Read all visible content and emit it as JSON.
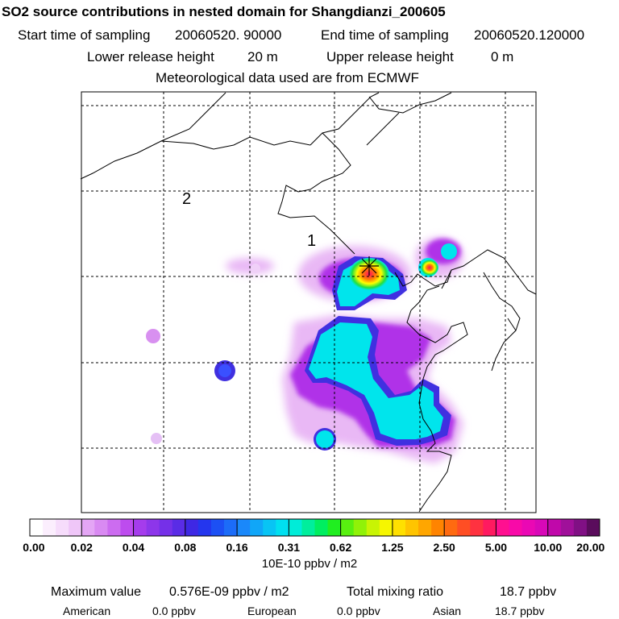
{
  "title": "SO2 source contributions in nested domain for Shangdianzi_200605",
  "sampling": {
    "start_label": "Start time of sampling",
    "start_value": "20060520. 90000",
    "end_label": "End time of sampling",
    "end_value": "20060520.120000"
  },
  "release": {
    "lower_label": "Lower release height",
    "lower_value": "20 m",
    "upper_label": "Upper release height",
    "upper_value": "0 m"
  },
  "met_note": "Meteorological data used are from ECMWF",
  "map": {
    "region_labels": [
      "2",
      "1"
    ]
  },
  "colorbar": {
    "tick_labels": [
      "0.00",
      "0.02",
      "0.04",
      "0.08",
      "0.16",
      "0.31",
      "0.62",
      "1.25",
      "2.50",
      "5.00",
      "10.00",
      "20.00"
    ],
    "units": "10E-10 ppbv / m2"
  },
  "summary": {
    "max_label": "Maximum value",
    "max_value": "0.576E-09 ppbv / m2",
    "total_label": "Total mixing ratio",
    "total_value": "18.7 ppbv",
    "regions": [
      {
        "name": "American",
        "value": "0.0 ppbv"
      },
      {
        "name": "European",
        "value": "0.0 ppbv"
      },
      {
        "name": "Asian",
        "value": "18.7 ppbv"
      }
    ]
  },
  "chart_data": {
    "type": "heatmap",
    "title": "SO2 source contributions in nested domain for Shangdianzi_200605",
    "colorbar_units": "10E-10 ppbv / m2",
    "colorbar_levels": [
      0.0,
      0.02,
      0.04,
      0.08,
      0.16,
      0.31,
      0.62,
      1.25,
      2.5,
      5.0,
      10.0,
      20.0
    ],
    "grid": true,
    "maximum_value": "0.576E-09 ppbv / m2",
    "total_mixing_ratio_ppbv": 18.7
  }
}
